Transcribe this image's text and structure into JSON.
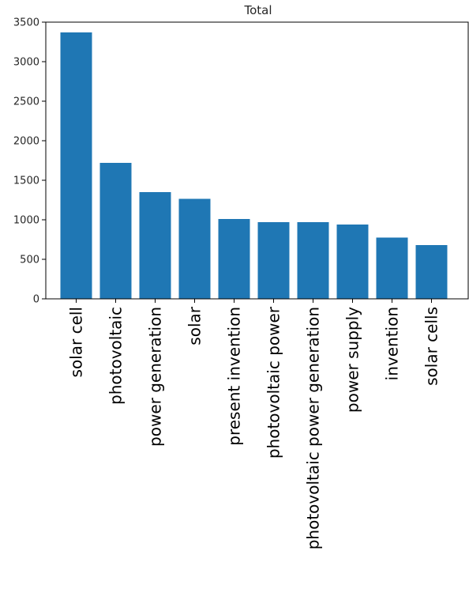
{
  "chart_data": {
    "type": "bar",
    "title": "Total",
    "xlabel": "",
    "ylabel": "",
    "categories": [
      "solar cell",
      "photovoltaic",
      "power generation",
      "solar",
      "present invention",
      "photovoltaic power",
      "photovoltaic power generation",
      "power supply",
      "invention",
      "solar cells"
    ],
    "values": [
      3370,
      1720,
      1350,
      1265,
      1010,
      970,
      970,
      940,
      775,
      680
    ],
    "ylim": [
      0,
      3500
    ],
    "yticks": [
      0,
      500,
      1000,
      1500,
      2000,
      2500,
      3000,
      3500
    ],
    "grid": false,
    "legend": "none",
    "bar_color": "#1f77b4"
  }
}
